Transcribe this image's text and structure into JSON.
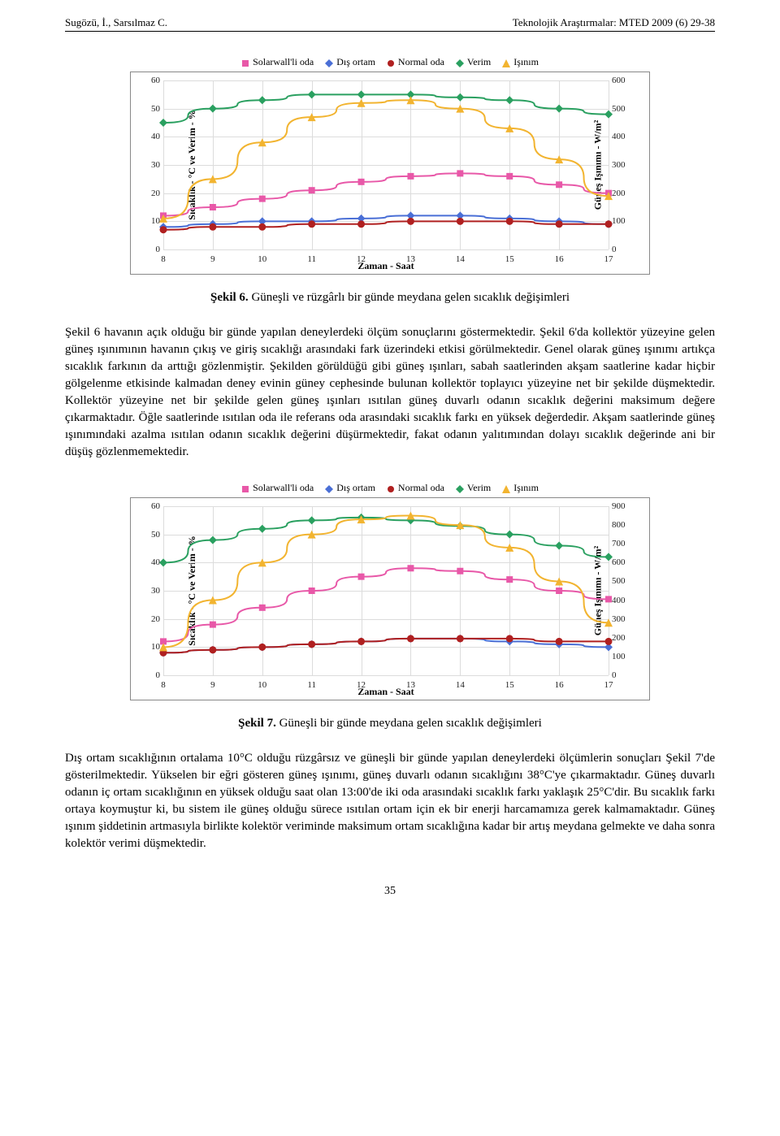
{
  "header": {
    "left": "Sugözü, İ., Sarsılmaz C.",
    "right": "Teknolojik Araştırmalar: MTED 2009 (6) 29-38"
  },
  "legend": {
    "items": [
      {
        "label": "Solarwall'li oda",
        "color": "#e858a8",
        "shape": "square"
      },
      {
        "label": "Dış ortam",
        "color": "#4a6fd6",
        "shape": "diamond"
      },
      {
        "label": "Normal oda",
        "color": "#b02020",
        "shape": "circle"
      },
      {
        "label": "Verim",
        "color": "#2aa060",
        "shape": "diamond"
      },
      {
        "label": "Işınım",
        "color": "#f2b430",
        "shape": "triangle"
      }
    ]
  },
  "chart1": {
    "type": "line",
    "x_values": [
      8,
      9,
      10,
      11,
      12,
      13,
      14,
      15,
      16,
      17
    ],
    "x_label": "Zaman - Saat",
    "y_left_label": "Sıcaklık - °C ve  Verim - %",
    "y_right_label": "Güneş Işınımı - W/m²",
    "y_left_ticks": [
      0,
      10,
      20,
      30,
      40,
      50,
      60
    ],
    "y_right_ticks": [
      0,
      100,
      200,
      300,
      400,
      500,
      600
    ],
    "y_left_lim": [
      0,
      60
    ],
    "y_right_lim": [
      0,
      600
    ],
    "grid_color": "#dcdcdc",
    "background_color": "#ffffff",
    "series": [
      {
        "name": "Solarwall'li oda",
        "axis": "left",
        "color": "#e858a8",
        "marker": "square",
        "values": [
          12,
          15,
          18,
          21,
          24,
          26,
          27,
          26,
          23,
          20
        ]
      },
      {
        "name": "Dış ortam",
        "axis": "left",
        "color": "#4a6fd6",
        "marker": "diamond",
        "values": [
          8,
          9,
          10,
          10,
          11,
          12,
          12,
          11,
          10,
          9
        ]
      },
      {
        "name": "Normal oda",
        "axis": "left",
        "color": "#b02020",
        "marker": "circle",
        "values": [
          7,
          8,
          8,
          9,
          9,
          10,
          10,
          10,
          9,
          9
        ]
      },
      {
        "name": "Verim",
        "axis": "left",
        "color": "#2aa060",
        "marker": "diamond",
        "values": [
          45,
          50,
          53,
          55,
          55,
          55,
          54,
          53,
          50,
          48
        ]
      },
      {
        "name": "Işınım",
        "axis": "right",
        "color": "#f2b430",
        "marker": "triangle",
        "values": [
          110,
          250,
          380,
          470,
          520,
          530,
          500,
          430,
          320,
          190
        ]
      }
    ]
  },
  "caption1": {
    "bold": "Şekil 6.",
    "rest": " Güneşli ve rüzgârlı bir günde meydana gelen sıcaklık değişimleri"
  },
  "para1": "Şekil 6 havanın açık olduğu bir günde yapılan deneylerdeki ölçüm sonuçlarını göstermektedir. Şekil 6'da kollektör yüzeyine gelen güneş ışınımının havanın çıkış ve giriş sıcaklığı arasındaki fark üzerindeki etkisi görülmektedir. Genel olarak güneş ışınımı artıkça sıcaklık farkının da arttığı gözlenmiştir. Şekilden görüldüğü gibi güneş ışınları, sabah saatlerinden akşam saatlerine kadar hiçbir gölgelenme etkisinde kalmadan deney evinin güney cephesinde bulunan kollektör toplayıcı yüzeyine net bir şekilde düşmektedir. Kollektör yüzeyine net bir şekilde gelen güneş ışınları ısıtılan güneş duvarlı odanın sıcaklık değerini maksimum değere çıkarmaktadır. Öğle saatlerinde ısıtılan oda ile referans oda arasındaki sıcaklık farkı en yüksek değerdedir. Akşam saatlerinde güneş ışınımındaki azalma ısıtılan odanın sıcaklık değerini düşürmektedir, fakat odanın yalıtımından dolayı sıcaklık değerinde ani bir düşüş gözlenmemektedir.",
  "chart2": {
    "type": "line",
    "x_values": [
      8,
      9,
      10,
      11,
      12,
      13,
      14,
      15,
      16,
      17
    ],
    "x_label": "Zaman - Saat",
    "y_left_label": "Sıcaklık - °C ve  Verim - %",
    "y_right_label": "Güneş Işınımı - W/m²",
    "y_left_ticks": [
      0,
      10,
      20,
      30,
      40,
      50,
      60
    ],
    "y_right_ticks": [
      0,
      100,
      200,
      300,
      400,
      500,
      600,
      700,
      800,
      900
    ],
    "y_left_lim": [
      0,
      60
    ],
    "y_right_lim": [
      0,
      900
    ],
    "grid_color": "#dcdcdc",
    "background_color": "#ffffff",
    "series": [
      {
        "name": "Solarwall'li oda",
        "axis": "left",
        "color": "#e858a8",
        "marker": "square",
        "values": [
          12,
          18,
          24,
          30,
          35,
          38,
          37,
          34,
          30,
          27
        ]
      },
      {
        "name": "Dış ortam",
        "axis": "left",
        "color": "#4a6fd6",
        "marker": "diamond",
        "values": [
          8,
          9,
          10,
          11,
          12,
          13,
          13,
          12,
          11,
          10
        ]
      },
      {
        "name": "Normal oda",
        "axis": "left",
        "color": "#b02020",
        "marker": "circle",
        "values": [
          8,
          9,
          10,
          11,
          12,
          13,
          13,
          13,
          12,
          12
        ]
      },
      {
        "name": "Verim",
        "axis": "left",
        "color": "#2aa060",
        "marker": "diamond",
        "values": [
          40,
          48,
          52,
          55,
          56,
          55,
          53,
          50,
          46,
          42
        ]
      },
      {
        "name": "Işınım",
        "axis": "right",
        "color": "#f2b430",
        "marker": "triangle",
        "values": [
          150,
          400,
          600,
          750,
          830,
          850,
          800,
          680,
          500,
          280
        ]
      }
    ]
  },
  "caption2": {
    "bold": "Şekil 7.",
    "rest": " Güneşli bir günde meydana gelen sıcaklık değişimleri"
  },
  "para2": "Dış ortam sıcaklığının ortalama 10°C olduğu rüzgârsız ve güneşli bir günde yapılan deneylerdeki ölçümlerin sonuçları Şekil 7'de gösterilmektedir. Yükselen bir eğri gösteren güneş ışınımı, güneş duvarlı odanın sıcaklığını 38°C'ye çıkarmaktadır. Güneş duvarlı odanın iç ortam sıcaklığının en yüksek olduğu saat olan 13:00'de iki oda arasındaki sıcaklık farkı yaklaşık 25°C'dir. Bu sıcaklık farkı ortaya koymuştur ki, bu sistem ile güneş olduğu sürece ısıtılan ortam için ek bir enerji harcamamıza gerek kalmamaktadır. Güneş ışınım şiddetinin artmasıyla birlikte kolektör veriminde maksimum ortam sıcaklığına kadar bir artış meydana gelmekte ve daha sonra kolektör verimi düşmektedir.",
  "page_number": "35"
}
